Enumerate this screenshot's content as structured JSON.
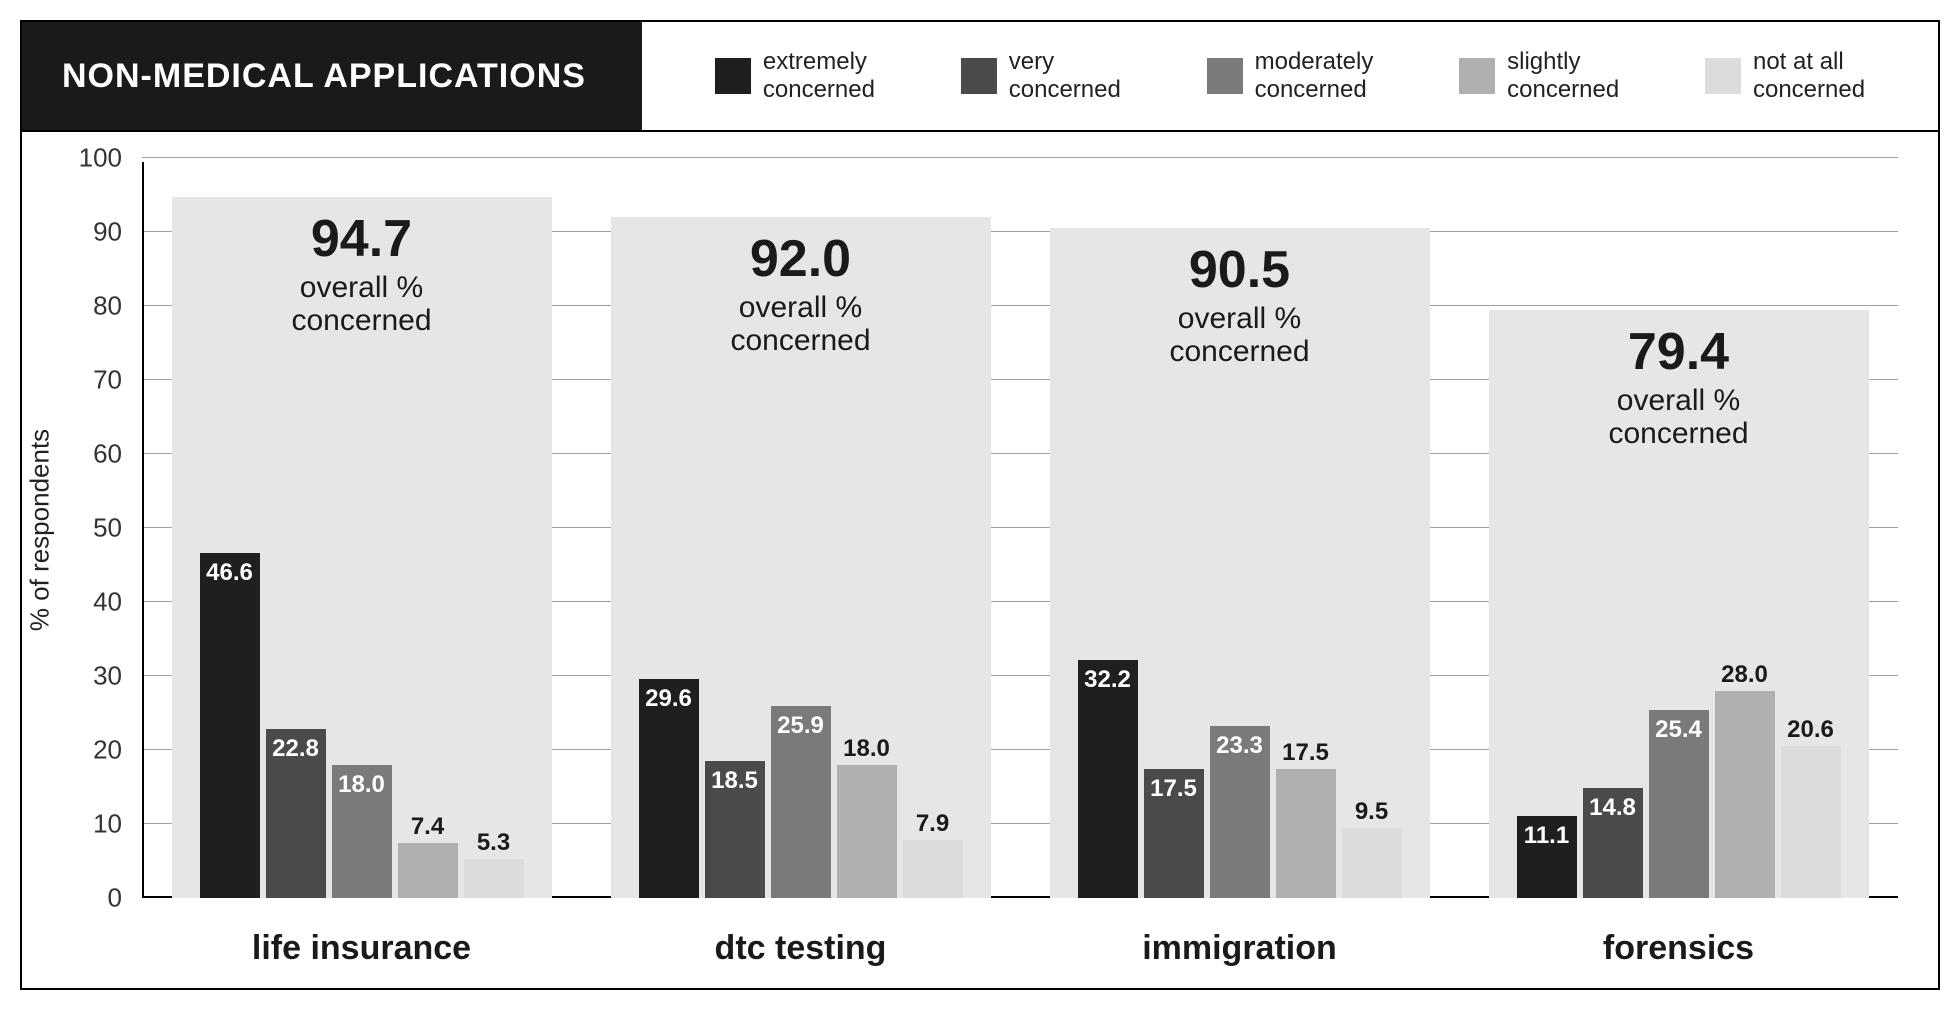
{
  "title": "NON-MEDICAL APPLICATIONS",
  "title_fontsize": 34,
  "title_bg": "#1a1a1a",
  "title_color": "#ffffff",
  "y_axis_label": "% of respondents",
  "y_axis_fontsize": 26,
  "y_ticks": [
    0,
    10,
    20,
    30,
    40,
    50,
    60,
    70,
    80,
    90,
    100
  ],
  "y_tick_fontsize": 26,
  "ylim_min": 0,
  "ylim_max": 100,
  "grid_color": "#a0a0a0",
  "legend_fontsize": 24,
  "legend": [
    {
      "label_line1": "extremely",
      "label_line2": "concerned",
      "color": "#1f1f1f"
    },
    {
      "label_line1": "very",
      "label_line2": "concerned",
      "color": "#4a4a4a"
    },
    {
      "label_line1": "moderately",
      "label_line2": "concerned",
      "color": "#7a7a7a"
    },
    {
      "label_line1": "slightly",
      "label_line2": "concerned",
      "color": "#b0b0b0"
    },
    {
      "label_line1": "not at all",
      "label_line2": "concerned",
      "color": "#dcdcdc"
    }
  ],
  "series_colors": [
    "#1f1f1f",
    "#4a4a4a",
    "#7a7a7a",
    "#b0b0b0",
    "#dcdcdc"
  ],
  "background_bar_color": "#e6e6e6",
  "background_bar_width": 380,
  "small_bar_width": 60,
  "bar_value_fontsize": 24,
  "overall_value_fontsize": 52,
  "overall_caption": "overall %\nconcerned",
  "overall_caption_fontsize": 30,
  "x_label_fontsize": 34,
  "categories": [
    {
      "name": "life insurance",
      "overall": 94.7,
      "values": [
        46.6,
        22.8,
        18.0,
        7.4,
        5.3
      ]
    },
    {
      "name": "dtc testing",
      "overall": 92.0,
      "values": [
        29.6,
        18.5,
        25.9,
        18.0,
        7.9
      ]
    },
    {
      "name": "immigration",
      "overall": 90.5,
      "values": [
        32.2,
        17.5,
        23.3,
        17.5,
        9.5
      ]
    },
    {
      "name": "forensics",
      "overall": 79.4,
      "values": [
        11.1,
        14.8,
        25.4,
        28.0,
        20.6
      ]
    }
  ]
}
